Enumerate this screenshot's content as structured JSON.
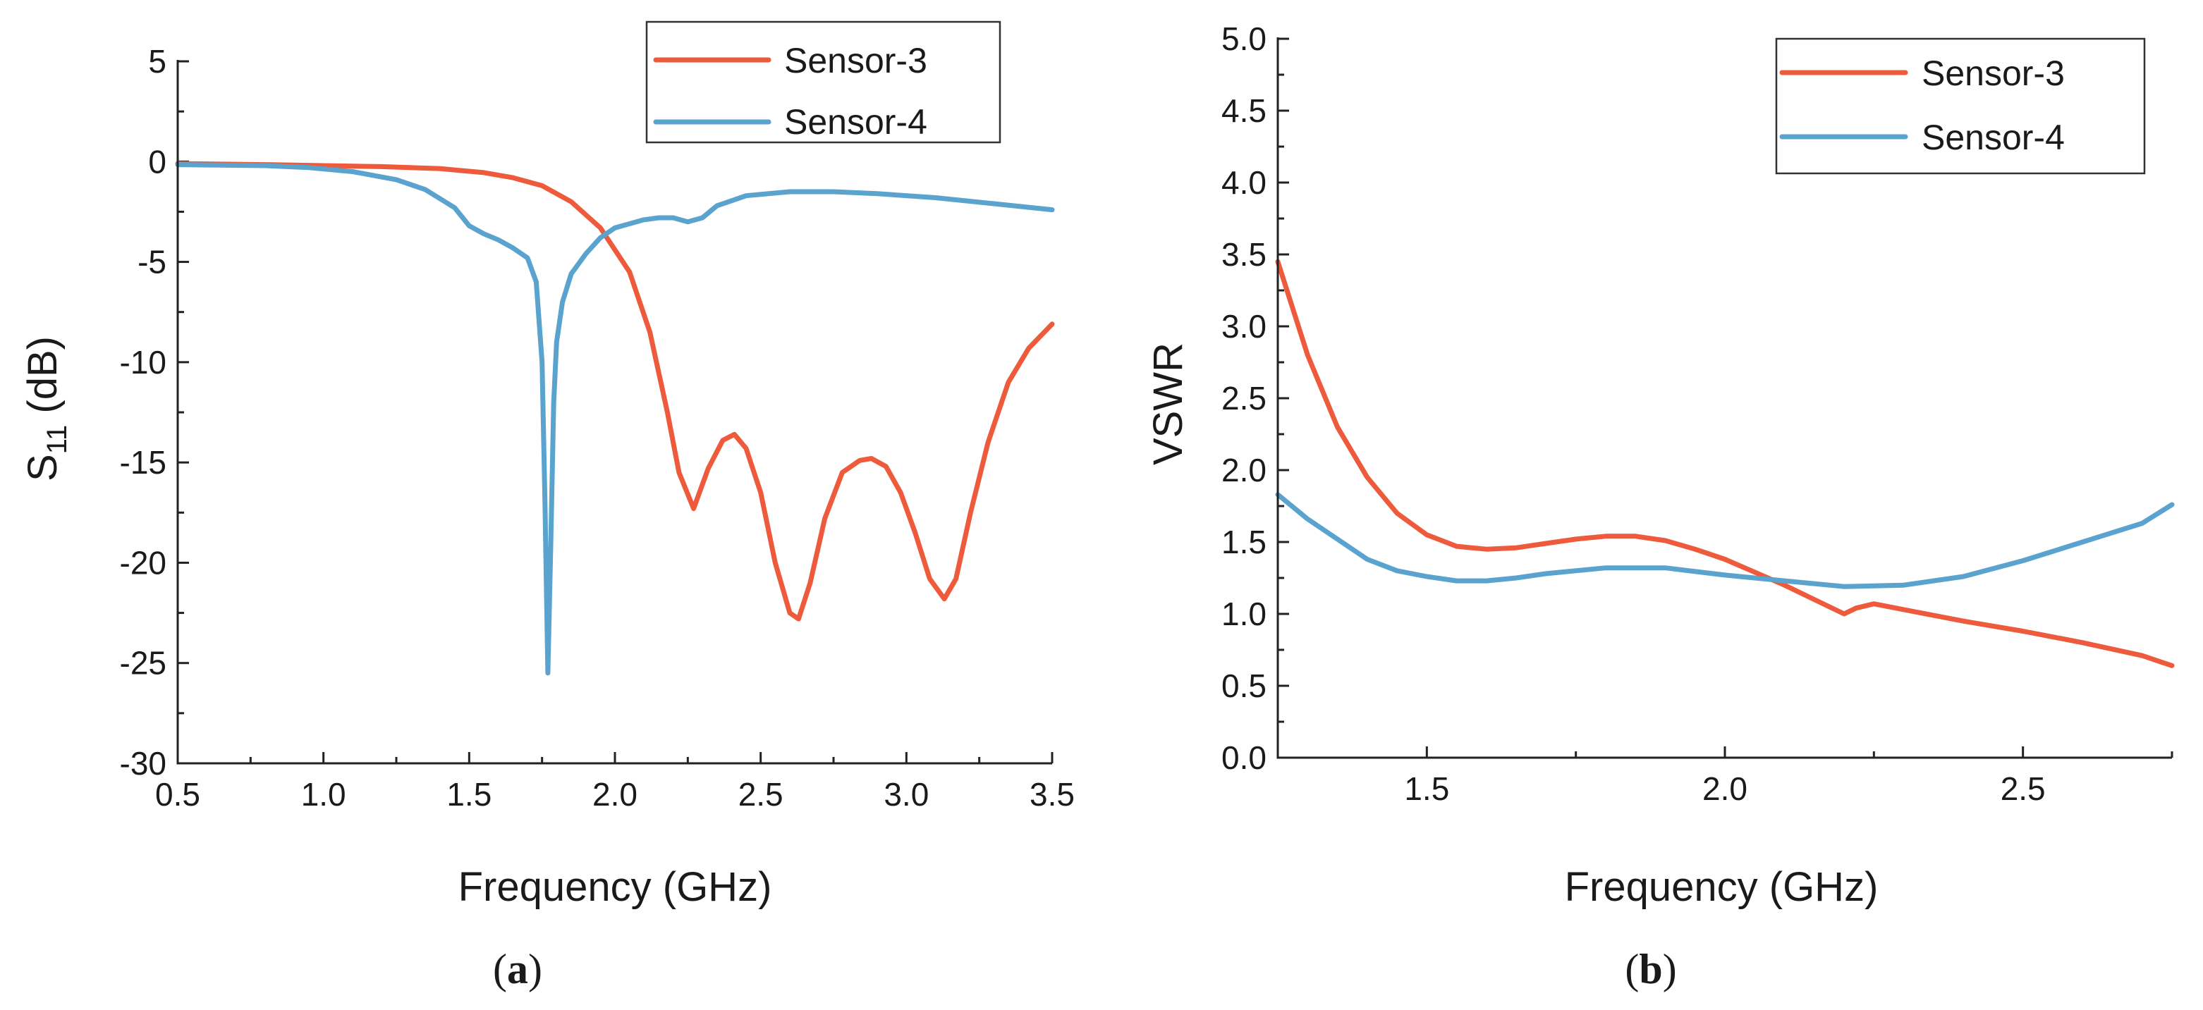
{
  "colors": {
    "sensor3": "#ee5a3c",
    "sensor4": "#5aa3cf",
    "axis": "#222222"
  },
  "chart_data": [
    {
      "type": "line",
      "panel_label": "(a)",
      "panel_label_parts": {
        "open": "(",
        "letter": "a",
        "close": ")"
      },
      "xlabel": "Frequency (GHz)",
      "ylabel": {
        "base": "S",
        "sub": "11",
        "rest": " (dB)"
      },
      "xlim": [
        0.5,
        3.5
      ],
      "ylim": [
        -30,
        5
      ],
      "xticks": [
        "0.5",
        "1.0",
        "1.5",
        "2.0",
        "2.5",
        "3.0",
        "3.5"
      ],
      "yticks": [
        "5",
        "0",
        "-5",
        "-10",
        "-15",
        "-20",
        "-25",
        "-30"
      ],
      "legend": {
        "position": "top-right",
        "entries": [
          "Sensor-3",
          "Sensor-4"
        ]
      },
      "series": [
        {
          "name": "Sensor-3",
          "color": "#ee5a3c",
          "x": [
            0.5,
            0.8,
            1.0,
            1.2,
            1.4,
            1.55,
            1.65,
            1.75,
            1.85,
            1.95,
            2.05,
            2.12,
            2.18,
            2.22,
            2.27,
            2.32,
            2.37,
            2.41,
            2.45,
            2.5,
            2.55,
            2.6,
            2.63,
            2.67,
            2.72,
            2.78,
            2.84,
            2.88,
            2.93,
            2.98,
            3.03,
            3.08,
            3.13,
            3.17,
            3.22,
            3.28,
            3.35,
            3.42,
            3.5
          ],
          "y": [
            -0.1,
            -0.15,
            -0.2,
            -0.25,
            -0.35,
            -0.55,
            -0.8,
            -1.2,
            -2.0,
            -3.3,
            -5.5,
            -8.5,
            -12.5,
            -15.5,
            -17.3,
            -15.3,
            -13.9,
            -13.6,
            -14.3,
            -16.5,
            -20.0,
            -22.5,
            -22.8,
            -21.0,
            -17.8,
            -15.5,
            -14.9,
            -14.8,
            -15.2,
            -16.5,
            -18.5,
            -20.8,
            -21.8,
            -20.8,
            -17.5,
            -14.0,
            -11.0,
            -9.3,
            -8.1
          ]
        },
        {
          "name": "Sensor-4",
          "color": "#5aa3cf",
          "x": [
            0.5,
            0.8,
            0.95,
            1.1,
            1.25,
            1.35,
            1.45,
            1.5,
            1.55,
            1.6,
            1.65,
            1.7,
            1.73,
            1.75,
            1.76,
            1.77,
            1.78,
            1.79,
            1.8,
            1.82,
            1.85,
            1.9,
            1.95,
            2.0,
            2.1,
            2.15,
            2.2,
            2.25,
            2.3,
            2.35,
            2.45,
            2.6,
            2.75,
            2.9,
            3.1,
            3.3,
            3.5
          ],
          "y": [
            -0.15,
            -0.2,
            -0.3,
            -0.5,
            -0.9,
            -1.4,
            -2.3,
            -3.2,
            -3.6,
            -3.9,
            -4.3,
            -4.8,
            -6.0,
            -10.0,
            -17.0,
            -25.5,
            -19.0,
            -12.0,
            -9.0,
            -7.0,
            -5.6,
            -4.6,
            -3.8,
            -3.3,
            -2.9,
            -2.8,
            -2.8,
            -3.0,
            -2.8,
            -2.2,
            -1.7,
            -1.5,
            -1.5,
            -1.6,
            -1.8,
            -2.1,
            -2.4
          ]
        }
      ]
    },
    {
      "type": "line",
      "panel_label": "(b)",
      "panel_label_parts": {
        "open": "(",
        "letter": "b",
        "close": ")"
      },
      "xlabel": "Frequency (GHz)",
      "ylabel": "VSWR",
      "xlim": [
        1.25,
        2.75
      ],
      "ylim": [
        0.0,
        5.0
      ],
      "xticks": [
        "1.5",
        "2.0",
        "2.5"
      ],
      "yticks": [
        "5.0",
        "4.5",
        "4.0",
        "3.5",
        "3.0",
        "2.5",
        "2.0",
        "1.5",
        "1.0",
        "0.5",
        "0.0"
      ],
      "legend": {
        "position": "top-right",
        "entries": [
          "Sensor-3",
          "Sensor-4"
        ]
      },
      "series": [
        {
          "name": "Sensor-3",
          "color": "#ee5a3c",
          "x": [
            1.25,
            1.3,
            1.35,
            1.4,
            1.45,
            1.5,
            1.55,
            1.6,
            1.65,
            1.7,
            1.75,
            1.8,
            1.85,
            1.9,
            1.95,
            2.0,
            2.05,
            2.1,
            2.15,
            2.2,
            2.22,
            2.25,
            2.3,
            2.4,
            2.5,
            2.6,
            2.7,
            2.75
          ],
          "y": [
            3.45,
            2.8,
            2.3,
            1.95,
            1.7,
            1.55,
            1.47,
            1.45,
            1.46,
            1.49,
            1.52,
            1.54,
            1.54,
            1.51,
            1.45,
            1.38,
            1.29,
            1.2,
            1.1,
            1.0,
            1.04,
            1.07,
            1.03,
            0.95,
            0.88,
            0.8,
            0.71,
            0.64
          ]
        },
        {
          "name": "Sensor-4",
          "color": "#5aa3cf",
          "x": [
            1.25,
            1.3,
            1.35,
            1.4,
            1.45,
            1.5,
            1.55,
            1.6,
            1.65,
            1.7,
            1.8,
            1.9,
            2.0,
            2.1,
            2.2,
            2.3,
            2.4,
            2.5,
            2.6,
            2.7,
            2.75
          ],
          "y": [
            1.83,
            1.66,
            1.52,
            1.38,
            1.3,
            1.26,
            1.23,
            1.23,
            1.25,
            1.28,
            1.32,
            1.32,
            1.27,
            1.23,
            1.19,
            1.2,
            1.26,
            1.37,
            1.5,
            1.63,
            1.76
          ]
        }
      ]
    }
  ]
}
